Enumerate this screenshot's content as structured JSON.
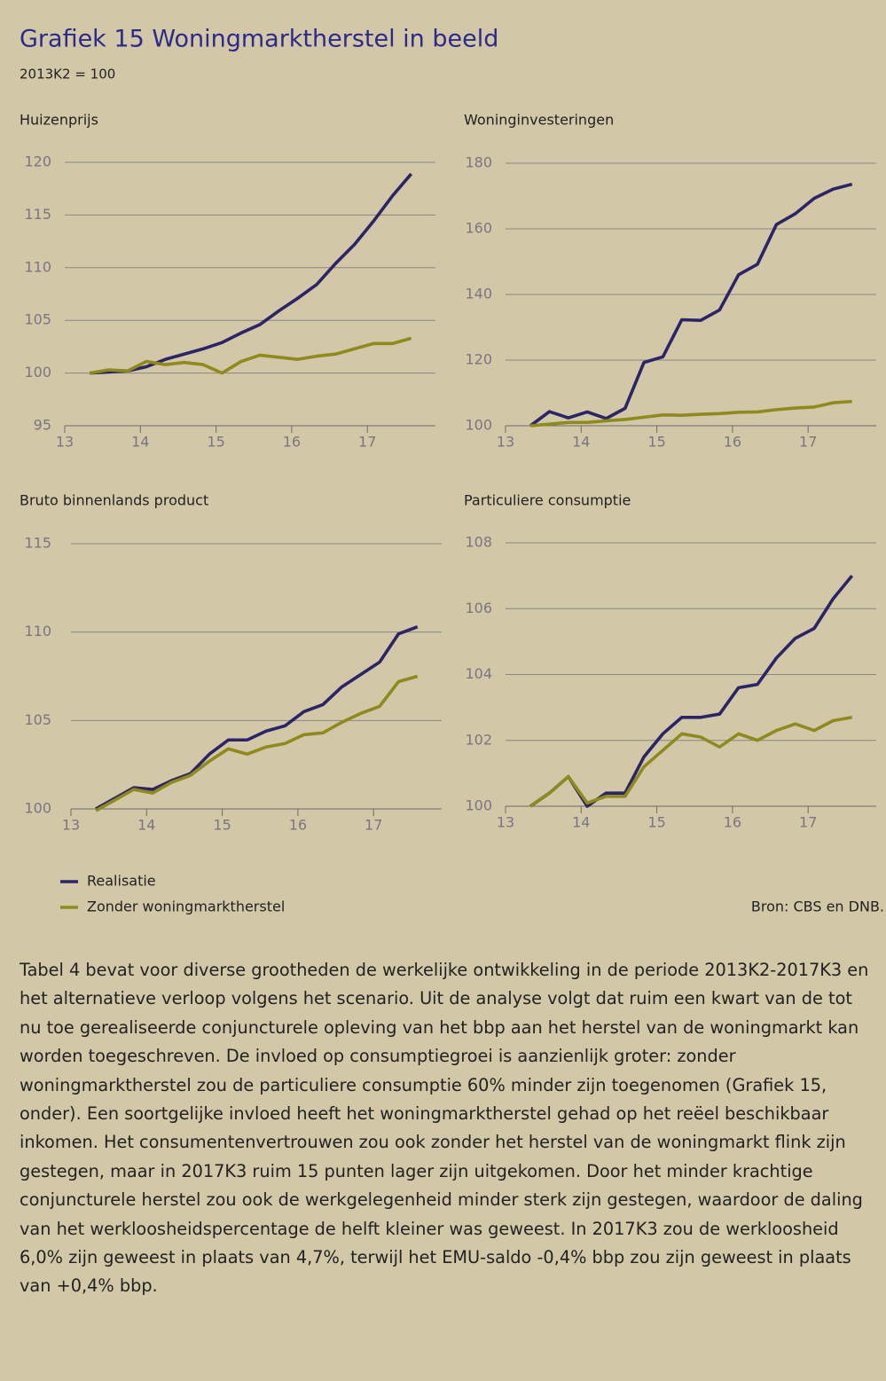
{
  "header": {
    "title": "Grafiek 15  Woningmarktherstel in beeld",
    "subtitle": "2013K2 = 100"
  },
  "chart_data": [
    {
      "type": "line",
      "title": "Huizenprijs",
      "x": [
        13.33,
        13.58,
        13.83,
        14.08,
        14.33,
        14.58,
        14.83,
        15.08,
        15.33,
        15.58,
        15.83,
        16.08,
        16.33,
        16.58,
        16.83,
        17.08,
        17.33,
        17.58
      ],
      "xlim": [
        13,
        17.9
      ],
      "xticks": [
        13,
        14,
        15,
        16,
        17
      ],
      "ylim": [
        95,
        120
      ],
      "yticks": [
        95,
        100,
        105,
        110,
        115,
        120
      ],
      "grid": true,
      "series": [
        {
          "name": "Realisatie",
          "color": "#2b2568",
          "values": [
            100,
            100.1,
            100.2,
            100.6,
            101.3,
            101.8,
            102.3,
            102.9,
            103.8,
            104.6,
            105.9,
            107.1,
            108.4,
            110.4,
            112.2,
            114.4,
            116.8,
            118.9
          ]
        },
        {
          "name": "Zonder woningmarktherstel",
          "color": "#8e8a1e",
          "values": [
            100,
            100.3,
            100.2,
            101.1,
            100.8,
            101.0,
            100.8,
            100.0,
            101.1,
            101.7,
            101.5,
            101.3,
            101.6,
            101.8,
            102.3,
            102.8,
            102.8,
            103.3
          ]
        }
      ]
    },
    {
      "type": "line",
      "title": "Woninginvesteringen",
      "x": [
        13.33,
        13.58,
        13.83,
        14.08,
        14.33,
        14.58,
        14.83,
        15.08,
        15.33,
        15.58,
        15.83,
        16.08,
        16.33,
        16.58,
        16.83,
        17.08,
        17.33,
        17.58
      ],
      "xlim": [
        13,
        17.9
      ],
      "xticks": [
        13,
        14,
        15,
        16,
        17
      ],
      "ylim": [
        100,
        180
      ],
      "yticks": [
        100,
        120,
        140,
        160,
        180
      ],
      "grid": true,
      "series": [
        {
          "name": "Realisatie",
          "color": "#2b2568",
          "values": [
            100,
            104.3,
            102.4,
            104.2,
            102.2,
            105.3,
            119.3,
            121,
            132.3,
            132.1,
            135.3,
            146,
            149.2,
            161.3,
            164.6,
            169.3,
            172.1,
            173.6
          ]
        },
        {
          "name": "Zonder woningmarktherstel",
          "color": "#8e8a1e",
          "values": [
            100,
            100.5,
            101,
            101,
            101.5,
            101.9,
            102.6,
            103.3,
            103.2,
            103.5,
            103.7,
            104.1,
            104.2,
            104.9,
            105.4,
            105.7,
            107,
            107.4
          ]
        }
      ]
    },
    {
      "type": "line",
      "title": "Bruto binnenlands product",
      "x": [
        13.33,
        13.58,
        13.83,
        14.08,
        14.33,
        14.58,
        14.83,
        15.08,
        15.33,
        15.58,
        15.83,
        16.08,
        16.33,
        16.58,
        16.83,
        17.08,
        17.33,
        17.58
      ],
      "xlim": [
        13,
        17.9
      ],
      "xticks": [
        13,
        14,
        15,
        16,
        17
      ],
      "ylim": [
        100,
        115
      ],
      "yticks": [
        100,
        105,
        110,
        115
      ],
      "grid": true,
      "series": [
        {
          "name": "Realisatie",
          "color": "#2b2568",
          "values": [
            100,
            100.6,
            101.2,
            101.1,
            101.6,
            102.0,
            103.1,
            103.9,
            103.9,
            104.4,
            104.7,
            105.5,
            105.9,
            106.9,
            107.6,
            108.3,
            109.9,
            110.3
          ]
        },
        {
          "name": "Zonder woningmarktherstel",
          "color": "#8e8a1e",
          "values": [
            99.9,
            100.5,
            101.1,
            100.9,
            101.5,
            101.9,
            102.7,
            103.4,
            103.1,
            103.5,
            103.7,
            104.2,
            104.3,
            104.9,
            105.4,
            105.8,
            107.2,
            107.5
          ]
        }
      ]
    },
    {
      "type": "line",
      "title": "Particuliere consumptie",
      "x": [
        13.33,
        13.58,
        13.83,
        14.08,
        14.33,
        14.58,
        14.83,
        15.08,
        15.33,
        15.58,
        15.83,
        16.08,
        16.33,
        16.58,
        16.83,
        17.08,
        17.33,
        17.58
      ],
      "xlim": [
        13,
        17.9
      ],
      "xticks": [
        13,
        14,
        15,
        16,
        17
      ],
      "ylim": [
        100,
        108
      ],
      "yticks": [
        100,
        102,
        104,
        106,
        108
      ],
      "grid": true,
      "series": [
        {
          "name": "Realisatie",
          "color": "#2b2568",
          "values": [
            100,
            100.4,
            100.9,
            100,
            100.4,
            100.4,
            101.5,
            102.2,
            102.7,
            102.7,
            102.8,
            103.6,
            103.7,
            104.5,
            105.1,
            105.4,
            106.3,
            107
          ]
        },
        {
          "name": "Zonder woningmarktherstel",
          "color": "#8e8a1e",
          "values": [
            100,
            100.4,
            100.9,
            100.1,
            100.3,
            100.3,
            101.2,
            101.7,
            102.2,
            102.1,
            101.8,
            102.2,
            102.0,
            102.3,
            102.5,
            102.3,
            102.6,
            102.7
          ]
        }
      ]
    }
  ],
  "source": "Bron: CBS en DNB.",
  "paragraph": "Tabel 4 bevat voor diverse grootheden de werkelijke ontwikkeling in de periode 2013K2-2017K3 en het alternatieve verloop volgens het scenario. Uit de analyse volgt dat ruim een kwart van de tot nu toe gerealiseerde conjuncturele opleving van het bbp aan het herstel van de woningmarkt kan worden toegeschreven. De invloed op consumptiegroei is aanzienlijk groter: zonder woningmarktherstel zou de particuliere consumptie 60% minder zijn toegenomen (Grafiek 15, onder). Een soortgelijke invloed heeft het woningmarktherstel gehad op het reëel beschikbaar inkomen. Het consumentenvertrouwen zou ook zonder het herstel van de woningmarkt flink zijn gestegen, maar in 2017K3 ruim 15 punten lager zijn uitgekomen. Door het minder krachtige conjuncturele herstel zou ook de werkgelegenheid minder sterk zijn gestegen, waardoor de daling van het werkloosheidspercentage de helft kleiner was geweest. In 2017K3 zou de werkloosheid 6,0% zijn geweest in plaats van 4,7%, terwijl het EMU-saldo -0,4% bbp zou zijn geweest in plaats van +0,4% bbp."
}
